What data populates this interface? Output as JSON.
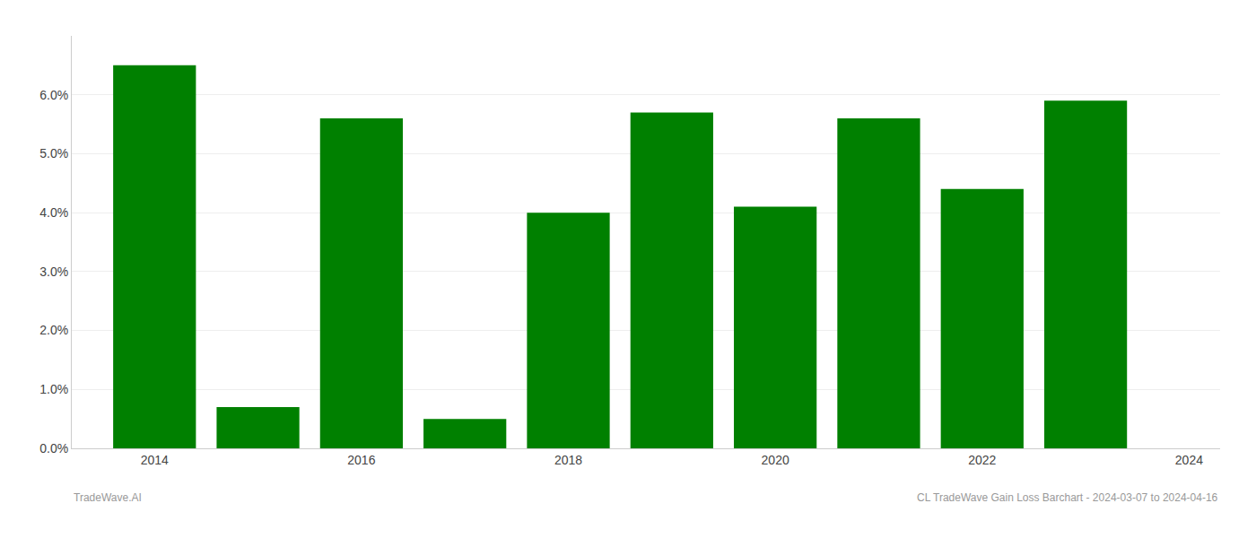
{
  "chart_data": {
    "type": "bar",
    "x": [
      2014,
      2015,
      2016,
      2017,
      2018,
      2019,
      2020,
      2021,
      2022,
      2023
    ],
    "values": [
      0.065,
      0.007,
      0.056,
      0.005,
      0.04,
      0.057,
      0.041,
      0.056,
      0.044,
      0.059
    ],
    "color": "#008000",
    "xlim": [
      2013.2,
      2024.3
    ],
    "xticks": [
      2014,
      2016,
      2018,
      2020,
      2022,
      2024
    ],
    "ylim": [
      0.0,
      0.07
    ],
    "yticks": [
      {
        "value": 0.0,
        "label": "0.0%"
      },
      {
        "value": 0.01,
        "label": "1.0%"
      },
      {
        "value": 0.02,
        "label": "2.0%"
      },
      {
        "value": 0.03,
        "label": "3.0%"
      },
      {
        "value": 0.04,
        "label": "4.0%"
      },
      {
        "value": 0.05,
        "label": "5.0%"
      },
      {
        "value": 0.06,
        "label": "6.0%"
      }
    ],
    "grid": true,
    "annotations": [
      "TradeWave.AI",
      "CL TradeWave Gain Loss Barchart - 2024-03-07 to 2024-04-16"
    ]
  }
}
